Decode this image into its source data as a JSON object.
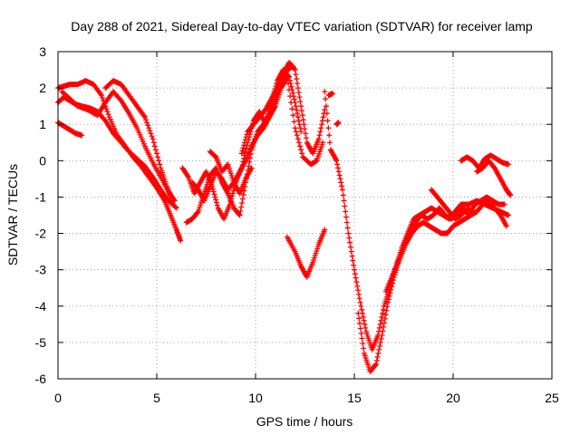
{
  "chart_data": {
    "type": "scatter",
    "title": "Day 288 of 2021, Sidereal Day-to-day VTEC variation (SDTVAR) for receiver lamp",
    "xlabel": "GPS time / hours",
    "ylabel": "SDTVAR / TECUs",
    "xlim": [
      0,
      25
    ],
    "ylim": [
      -6,
      3
    ],
    "xticks": [
      0,
      5,
      10,
      15,
      20,
      25
    ],
    "yticks": [
      -6,
      -5,
      -4,
      -3,
      -2,
      -1,
      0,
      1,
      2,
      3
    ],
    "grid": true,
    "legend": "none",
    "marker": "+",
    "color": "#ff0000",
    "series": [
      {
        "x": [
          0.0,
          0.3,
          0.6,
          1.0,
          1.4,
          1.8,
          2.2,
          2.6,
          3.0,
          3.4,
          3.8,
          4.2,
          4.6,
          5.0,
          5.4,
          5.7,
          6.0,
          6.2
        ],
        "y": [
          2.0,
          2.05,
          2.1,
          2.1,
          2.2,
          2.1,
          1.8,
          1.2,
          0.7,
          0.4,
          0.1,
          -0.15,
          -0.45,
          -0.75,
          -1.1,
          -1.5,
          -1.9,
          -2.2
        ]
      },
      {
        "x": [
          0.0,
          0.3,
          0.6,
          0.9,
          1.2,
          1.6,
          2.0,
          2.4,
          2.8,
          3.2,
          3.6,
          4.0,
          4.4,
          4.8,
          5.2,
          5.6,
          6.0
        ],
        "y": [
          1.6,
          1.75,
          1.65,
          1.55,
          1.5,
          1.45,
          1.35,
          1.1,
          0.75,
          0.5,
          0.25,
          0.05,
          -0.15,
          -0.45,
          -0.8,
          -1.1,
          -1.3
        ]
      },
      {
        "x": [
          0.0,
          0.3,
          0.6,
          0.9,
          1.2
        ],
        "y": [
          1.05,
          0.95,
          0.85,
          0.75,
          0.7
        ]
      },
      {
        "x": [
          0.2,
          0.6,
          1.0,
          1.5,
          2.0,
          2.4,
          2.8,
          3.2,
          3.6,
          4.0,
          4.4,
          4.8,
          5.2,
          5.6,
          5.9
        ],
        "y": [
          1.9,
          1.7,
          1.5,
          1.4,
          1.25,
          1.6,
          1.9,
          1.65,
          1.3,
          0.9,
          0.4,
          -0.05,
          -0.45,
          -0.85,
          -1.1
        ]
      },
      {
        "x": [
          2.4,
          2.8,
          3.2,
          3.6,
          4.0,
          4.4,
          4.8,
          5.2,
          5.5,
          5.8
        ],
        "y": [
          2.0,
          2.2,
          2.1,
          1.8,
          1.5,
          1.2,
          0.6,
          -0.2,
          -0.7,
          -1.1
        ]
      },
      {
        "x": [
          6.5,
          6.8,
          7.1,
          7.4,
          7.7,
          8.0,
          8.3,
          8.6,
          8.9,
          9.2,
          9.5,
          9.8,
          10.1,
          10.4,
          10.7,
          11.0,
          11.3,
          11.6,
          11.9
        ],
        "y": [
          -1.7,
          -1.6,
          -1.4,
          -0.9,
          -0.4,
          -0.2,
          -0.6,
          -0.9,
          -1.3,
          -1.5,
          -0.6,
          0.3,
          0.8,
          1.0,
          1.3,
          1.7,
          2.1,
          2.5,
          2.6
        ]
      },
      {
        "x": [
          6.3,
          6.6,
          6.9,
          7.2,
          7.5,
          7.8,
          8.1,
          8.4,
          8.7,
          9.0,
          9.3,
          9.6,
          9.9,
          10.2,
          10.5,
          10.8,
          11.1,
          11.4,
          11.7,
          12.0,
          12.3
        ],
        "y": [
          -0.2,
          -0.45,
          -0.9,
          -0.6,
          -0.3,
          -0.7,
          -1.3,
          -1.6,
          -1.2,
          -0.6,
          -0.2,
          0.5,
          1.1,
          1.35,
          1.0,
          1.6,
          2.2,
          2.5,
          2.3,
          1.6,
          0.8
        ]
      },
      {
        "x": [
          6.8,
          7.1,
          7.4,
          7.7,
          8.0,
          8.3,
          8.6,
          8.9,
          9.2,
          9.5,
          9.8,
          10.1,
          10.4,
          10.7,
          11.0,
          11.3,
          11.6,
          12.0,
          12.4,
          12.8,
          13.1,
          13.4
        ],
        "y": [
          -0.6,
          -0.8,
          -1.1,
          -0.7,
          -0.3,
          -0.5,
          -0.8,
          -0.6,
          -0.3,
          0.0,
          0.4,
          0.7,
          0.9,
          1.2,
          1.5,
          2.0,
          2.3,
          0.9,
          0.1,
          -0.1,
          0.0,
          0.5
        ]
      },
      {
        "x": [
          7.7,
          8.0,
          8.3,
          8.6,
          8.9,
          9.2,
          9.5,
          9.8
        ],
        "y": [
          0.25,
          0.1,
          -0.3,
          -0.1,
          -0.6,
          -0.9,
          -0.5,
          -0.2
        ]
      },
      {
        "x": [
          9.3,
          9.6,
          9.9,
          10.2,
          10.5,
          10.8,
          11.1,
          11.4,
          11.7,
          12.0,
          12.3,
          12.6,
          12.9,
          13.2,
          13.5
        ],
        "y": [
          0.2,
          0.8,
          1.0,
          1.2,
          1.4,
          1.7,
          2.0,
          2.4,
          2.7,
          2.5,
          1.5,
          0.5,
          0.2,
          0.6,
          1.4
        ]
      },
      {
        "x": [
          11.6,
          12.0,
          12.3,
          12.6,
          12.9,
          13.2,
          13.5
        ],
        "y": [
          -2.1,
          -2.5,
          -2.9,
          -3.2,
          -2.8,
          -2.3,
          -1.9
        ]
      },
      {
        "x": [
          13.5,
          13.8,
          14.1,
          14.4,
          14.7,
          15.0,
          15.3,
          15.6,
          15.9,
          16.2,
          16.5,
          16.8,
          17.1,
          17.4,
          17.7,
          18.0,
          18.3,
          18.6,
          18.9,
          19.2,
          19.5,
          19.8,
          20.1,
          20.4,
          20.8,
          21.2,
          21.6,
          22.0,
          22.4,
          22.8
        ],
        "y": [
          1.9,
          0.3,
          0.0,
          -0.8,
          -2.0,
          -3.0,
          -3.9,
          -4.7,
          -5.2,
          -4.8,
          -4.0,
          -3.5,
          -2.9,
          -2.4,
          -2.0,
          -1.6,
          -1.5,
          -1.4,
          -1.3,
          -1.4,
          -1.5,
          -1.6,
          -1.4,
          -1.2,
          -1.2,
          -1.1,
          -1.2,
          -1.3,
          -1.4,
          -1.5
        ]
      },
      {
        "x": [
          15.2,
          15.5,
          15.8,
          16.1,
          16.4,
          16.7,
          17.0,
          17.3,
          17.6,
          17.9,
          18.2,
          18.5,
          18.8,
          19.1,
          19.4,
          19.7,
          20.0,
          20.3,
          20.6,
          20.9,
          21.2,
          21.5,
          21.8,
          22.1,
          22.4,
          22.7
        ],
        "y": [
          -4.2,
          -5.3,
          -5.8,
          -5.6,
          -4.8,
          -3.9,
          -3.2,
          -2.7,
          -2.3,
          -2.0,
          -1.8,
          -1.7,
          -1.8,
          -1.9,
          -2.0,
          -2.0,
          -1.8,
          -1.7,
          -1.6,
          -1.5,
          -1.4,
          -1.2,
          -1.1,
          -1.3,
          -1.5,
          -1.8
        ]
      },
      {
        "x": [
          16.6,
          16.9,
          17.2,
          17.5,
          17.8,
          18.1,
          18.4,
          18.7,
          19.0,
          19.3,
          19.6,
          19.9,
          20.2,
          20.5,
          20.8,
          21.1,
          21.4,
          21.7,
          22.0,
          22.3,
          22.6
        ],
        "y": [
          -3.6,
          -3.2,
          -2.8,
          -2.4,
          -2.0,
          -1.7,
          -1.5,
          -1.6,
          -1.5,
          -1.3,
          -1.5,
          -1.6,
          -1.5,
          -1.3,
          -1.5,
          -1.2,
          -1.1,
          -1.0,
          -1.1,
          -1.2,
          -1.2
        ]
      },
      {
        "x": [
          18.9,
          19.2,
          19.5,
          19.8,
          20.1,
          20.4,
          20.8
        ],
        "y": [
          -0.8,
          -1.0,
          -1.2,
          -1.4,
          -1.6,
          -1.5,
          -1.3
        ]
      },
      {
        "x": [
          20.4,
          20.7,
          21.0,
          21.3,
          21.6,
          21.9,
          22.2,
          22.5,
          22.8
        ],
        "y": [
          0.0,
          0.1,
          0.0,
          -0.2,
          0.05,
          0.15,
          0.05,
          -0.05,
          -0.1
        ]
      },
      {
        "x": [
          21.2,
          21.5,
          21.8,
          22.1,
          22.4,
          22.7,
          22.9
        ],
        "y": [
          -0.3,
          -0.2,
          0.0,
          -0.2,
          -0.5,
          -0.8,
          -0.95
        ]
      },
      {
        "x": [
          13.7,
          13.9
        ],
        "y": [
          1.8,
          1.85
        ]
      },
      {
        "x": [
          14.1,
          14.2
        ],
        "y": [
          1.0,
          1.05
        ]
      }
    ]
  }
}
